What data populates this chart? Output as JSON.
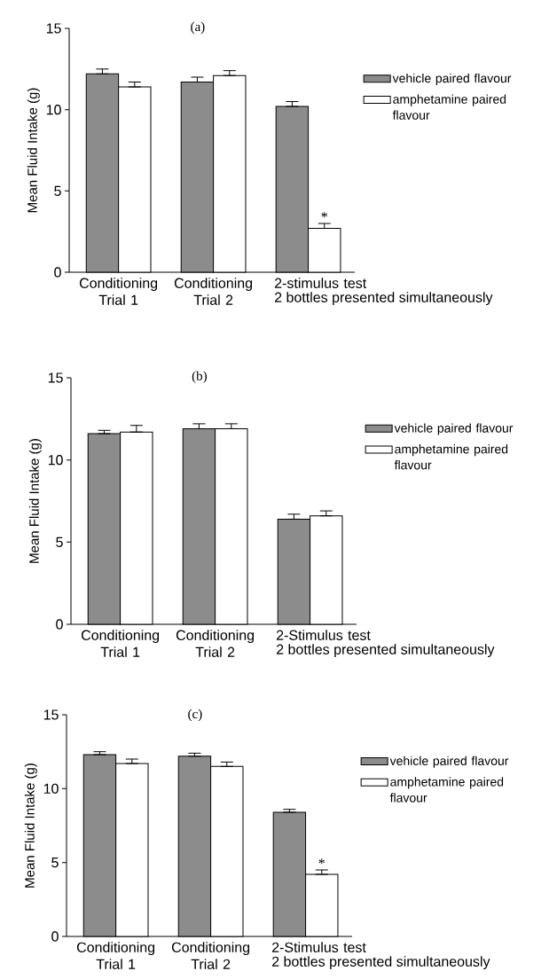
{
  "chart_data": [
    {
      "type": "bar",
      "title": "(a)",
      "ylabel": "Mean Fluid Intake (g)",
      "xlabel": "2 bottles presented simultaneously",
      "categories": [
        "Conditioning\nTrial 1",
        "Conditioning\nTrial 2",
        "2-stimulus test"
      ],
      "series": [
        {
          "name": "vehicle  paired flavour",
          "color": "#8c8c8c",
          "values": [
            12.2,
            11.7,
            10.2
          ],
          "errors": [
            [
              12.2,
              12.5
            ],
            [
              11.7,
              12.0
            ],
            [
              10.2,
              10.5
            ]
          ]
        },
        {
          "name": "amphetamine  paired flavour",
          "color": "#ffffff",
          "values": [
            11.4,
            12.1,
            2.7
          ],
          "errors": [
            [
              11.4,
              11.7
            ],
            [
              12.1,
              12.4
            ],
            [
              2.7,
              3.0
            ]
          ]
        }
      ],
      "ylim": [
        0,
        15
      ],
      "yticks": [
        0,
        5,
        10,
        15
      ],
      "legend": "top right",
      "annotations": [
        "*"
      ]
    },
    {
      "type": "bar",
      "title": "(b)",
      "ylabel": "Mean Fluid Intake (g)",
      "xlabel": "2 bottles presented simultaneously",
      "categories": [
        "Conditioning\nTrial 1",
        "Conditioning\nTrial 2",
        "2-Stimulus test"
      ],
      "series": [
        {
          "name": "vehicle  paired flavour",
          "color": "#8c8c8c",
          "values": [
            11.6,
            11.9,
            6.4
          ],
          "errors": [
            [
              11.6,
              11.8
            ],
            [
              11.9,
              12.2
            ],
            [
              6.4,
              6.7
            ]
          ]
        },
        {
          "name": "amphetamine  paired flavour",
          "color": "#ffffff",
          "values": [
            11.7,
            11.9,
            6.6
          ],
          "errors": [
            [
              11.7,
              12.1
            ],
            [
              11.9,
              12.2
            ],
            [
              6.6,
              6.9
            ]
          ]
        }
      ],
      "ylim": [
        0,
        15
      ],
      "yticks": [
        0,
        5,
        10,
        15
      ],
      "legend": "top right"
    },
    {
      "type": "bar",
      "title": "(c)",
      "ylabel": "Mean Fluid Intake (g)",
      "xlabel": "2 bottles presented simultaneously",
      "categories": [
        "Conditioning\nTrial 1",
        "Conditioning\nTrial 2",
        "2-Stimulus test"
      ],
      "series": [
        {
          "name": "vehicle  paired flavour",
          "color": "#8c8c8c",
          "values": [
            12.3,
            12.2,
            8.4
          ],
          "errors": [
            [
              12.3,
              12.5
            ],
            [
              12.2,
              12.4
            ],
            [
              8.4,
              8.6
            ]
          ]
        },
        {
          "name": "amphetamine  paired flavour",
          "color": "#ffffff",
          "values": [
            11.7,
            11.5,
            4.2
          ],
          "errors": [
            [
              11.7,
              12.0
            ],
            [
              11.5,
              11.8
            ],
            [
              4.2,
              4.5
            ]
          ]
        }
      ],
      "ylim": [
        0,
        15
      ],
      "yticks": [
        0,
        5,
        10,
        15
      ],
      "legend": "top right",
      "annotations": [
        "*"
      ]
    }
  ]
}
